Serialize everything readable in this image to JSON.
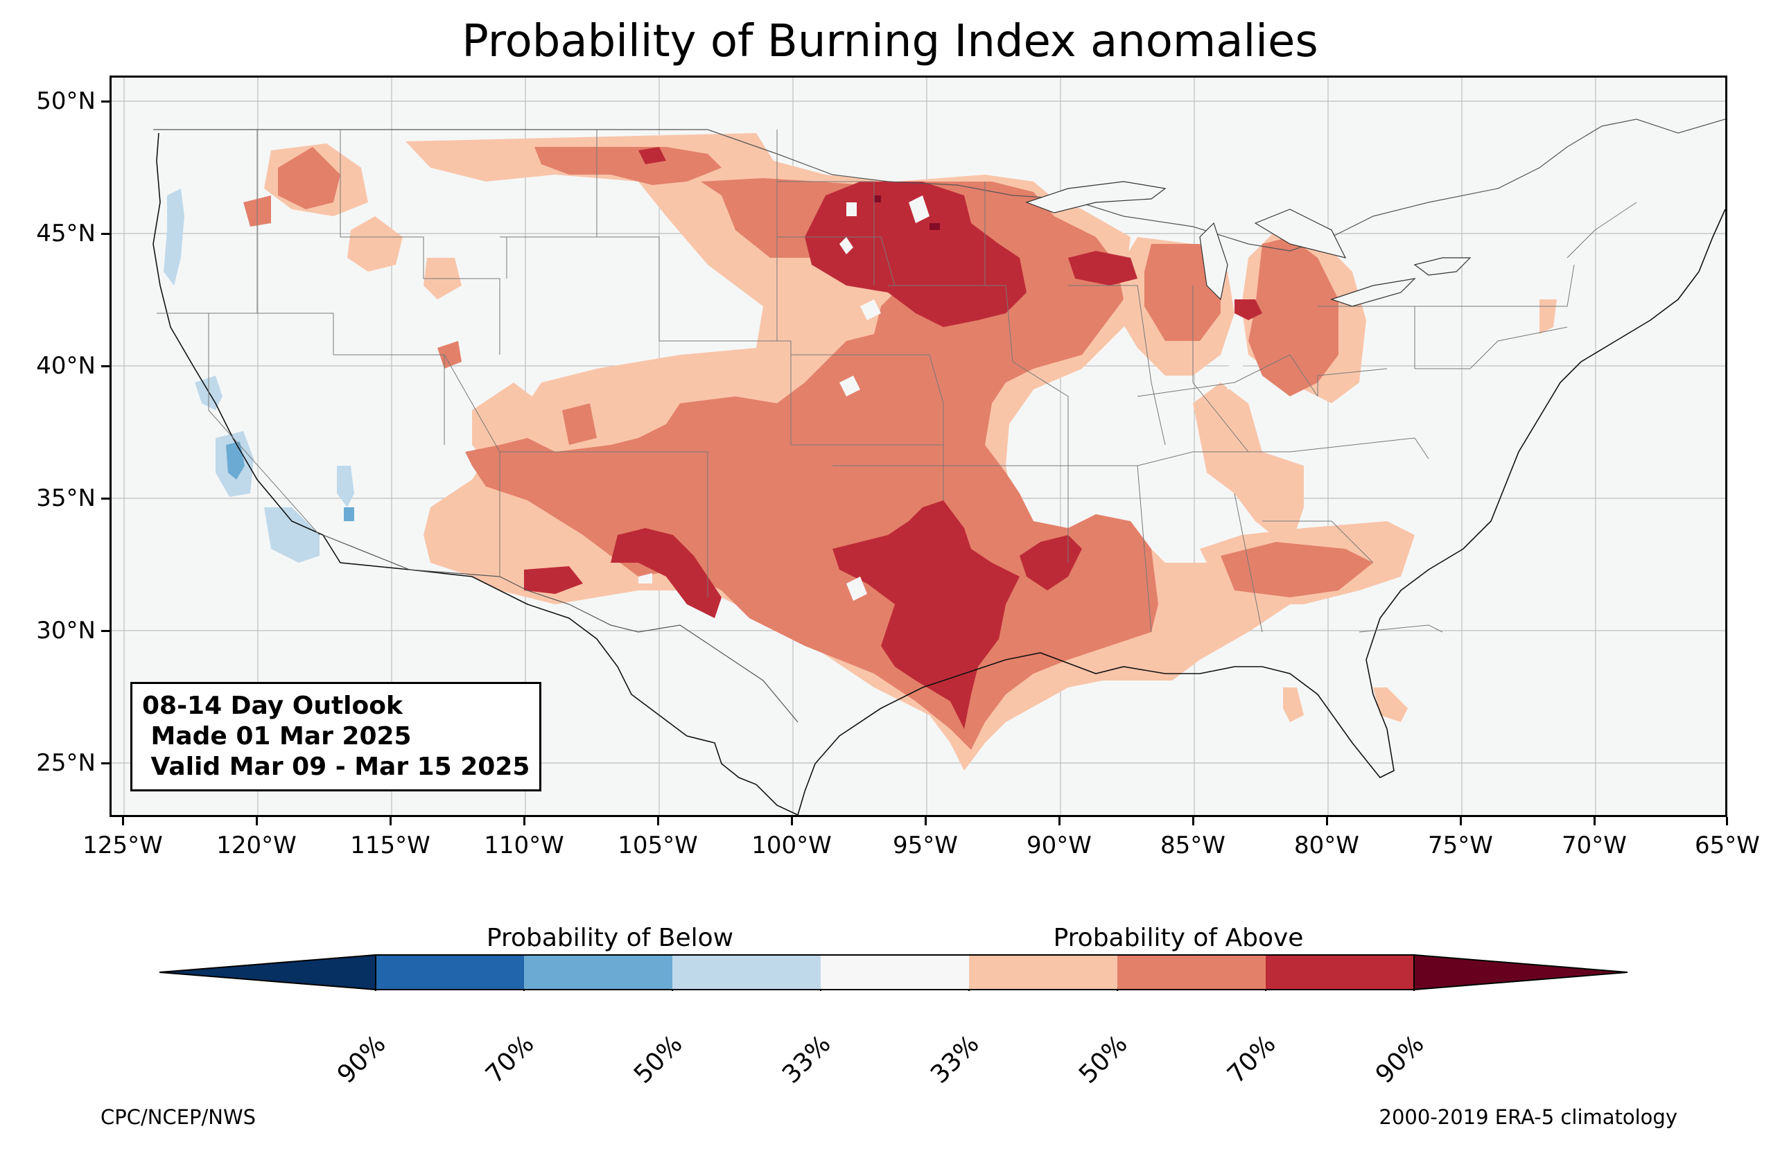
{
  "title": "Probability of Burning Index anomalies",
  "lat_labels": [
    "50°N",
    "45°N",
    "40°N",
    "35°N",
    "30°N",
    "25°N"
  ],
  "lon_labels": [
    "125°W",
    "120°W",
    "115°W",
    "110°W",
    "105°W",
    "100°W",
    "95°W",
    "90°W",
    "85°W",
    "80°W",
    "75°W",
    "70°W",
    "65°W"
  ],
  "info_box": {
    "line1": "08-14 Day Outlook",
    "line2": " Made 01 Mar 2025",
    "line3": " Valid Mar 09 - Mar 15 2025"
  },
  "colorbar": {
    "below_caption": "Probability of Below",
    "above_caption": "Probability of Above",
    "tick_labels": [
      "90%",
      "70%",
      "50%",
      "33%",
      "33%",
      "50%",
      "70%",
      "90%"
    ],
    "colors": [
      "#053061",
      "#2166ac",
      "#4393c3",
      "#92c5de",
      "#d1e5f0",
      "#f7f7f7",
      "#fddbc7",
      "#f4a582",
      "#d6604d",
      "#b2182b",
      "#67001f"
    ]
  },
  "footer": {
    "left": "CPC/NCEP/NWS",
    "right": "2000-2019 ERA-5 climatology"
  },
  "map": {
    "extent_lon": [
      -125.5,
      -65
    ],
    "extent_lat": [
      23,
      51
    ],
    "category_colors": {
      "above_33": "#f9c5a9",
      "above_50": "#e3806a",
      "above_70": "#bd2a37",
      "above_90": "#840c25",
      "below_33": "#bfd9ea",
      "below_50": "#6aaad3"
    }
  }
}
